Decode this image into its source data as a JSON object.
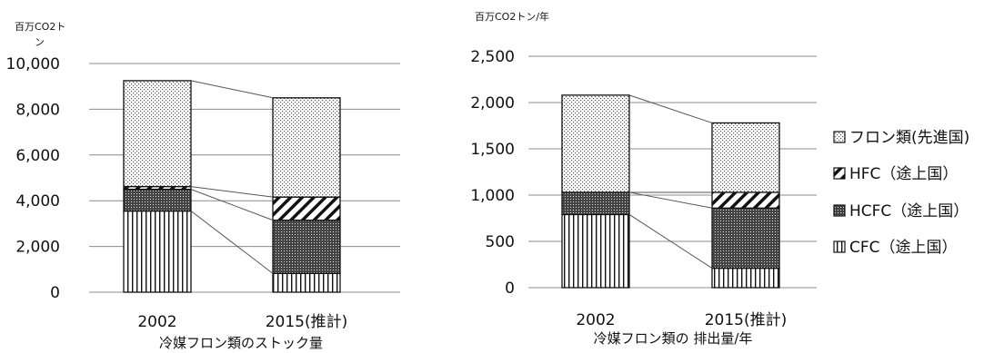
{
  "chart_data": [
    {
      "type": "bar",
      "stacked": true,
      "xlabel": "冷媒フロン類のストック量",
      "ylabel": "百万CO2トン",
      "ylim": [
        0,
        10000
      ],
      "yticks": [
        "0",
        "2,000",
        "4,000",
        "6,000",
        "8,000",
        "10,000"
      ],
      "categories": [
        "2002",
        "2015(推計)"
      ],
      "grid": true,
      "series": [
        {
          "name": "CFC（途上国）",
          "values": [
            3550,
            820
          ]
        },
        {
          "name": "HCFC（途上国）",
          "values": [
            950,
            2330
          ]
        },
        {
          "name": "HFC（途上国）",
          "values": [
            120,
            1010
          ]
        },
        {
          "name": "フロン類(先進国)",
          "values": [
            4630,
            4340
          ]
        }
      ]
    },
    {
      "type": "bar",
      "stacked": true,
      "xlabel": "冷媒フロン類の 排出量/年",
      "ylabel": "百万CO2トン/年",
      "ylim": [
        0,
        2500
      ],
      "yticks": [
        "0",
        "500",
        "1,000",
        "1,500",
        "2,000",
        "2,500"
      ],
      "categories": [
        "2002",
        "2015(推計)"
      ],
      "grid": true,
      "legend": "right",
      "series": [
        {
          "name": "CFC（途上国）",
          "values": [
            790,
            210
          ]
        },
        {
          "name": "HCFC（途上国）",
          "values": [
            240,
            650
          ]
        },
        {
          "name": "HFC（途上国）",
          "values": [
            0,
            170
          ]
        },
        {
          "name": "フロン類(先進国)",
          "values": [
            1050,
            750
          ]
        }
      ]
    }
  ]
}
